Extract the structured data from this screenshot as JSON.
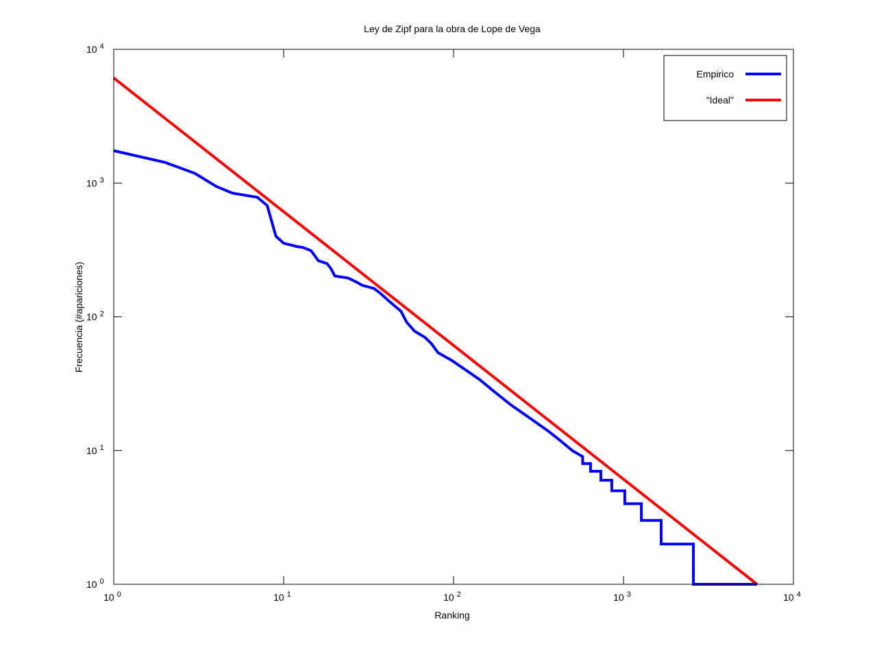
{
  "chart_data": {
    "type": "line",
    "title": "Ley de Zipf para la obra de Lope de Vega",
    "xlabel": "Ranking",
    "ylabel": "Frecuencia (#apariciones)",
    "xscale": "log",
    "yscale": "log",
    "xlim": [
      1,
      10000
    ],
    "ylim": [
      1,
      10000
    ],
    "grid": false,
    "legend_position": "top-right",
    "x_ticks": [
      {
        "base": "10",
        "exp": "0"
      },
      {
        "base": "10",
        "exp": "1"
      },
      {
        "base": "10",
        "exp": "2"
      },
      {
        "base": "10",
        "exp": "3"
      },
      {
        "base": "10",
        "exp": "4"
      }
    ],
    "y_ticks": [
      {
        "base": "10",
        "exp": "0"
      },
      {
        "base": "10",
        "exp": "1"
      },
      {
        "base": "10",
        "exp": "2"
      },
      {
        "base": "10",
        "exp": "3"
      },
      {
        "base": "10",
        "exp": "4"
      }
    ],
    "series": [
      {
        "name": "Empirico",
        "color": "#0000ff",
        "points": [
          [
            1,
            1746
          ],
          [
            2,
            1429
          ],
          [
            3,
            1183
          ],
          [
            4,
            946
          ],
          [
            5,
            840
          ],
          [
            7,
            783
          ],
          [
            8,
            679
          ],
          [
            9,
            400
          ],
          [
            10,
            355
          ],
          [
            12,
            335
          ],
          [
            13,
            330
          ],
          [
            14.5,
            312
          ],
          [
            16,
            263
          ],
          [
            18,
            250
          ],
          [
            19,
            229
          ],
          [
            20,
            202
          ],
          [
            24,
            195
          ],
          [
            27,
            181
          ],
          [
            29,
            172
          ],
          [
            34,
            163
          ],
          [
            37,
            150
          ],
          [
            42,
            130
          ],
          [
            49,
            110
          ],
          [
            53,
            91
          ],
          [
            59,
            78
          ],
          [
            68,
            70
          ],
          [
            74,
            63
          ],
          [
            81,
            54
          ],
          [
            98,
            47
          ],
          [
            118,
            40
          ],
          [
            142,
            34
          ],
          [
            171,
            28
          ],
          [
            217,
            22
          ],
          [
            272,
            18
          ],
          [
            360,
            14
          ],
          [
            420,
            12
          ],
          [
            500,
            10
          ],
          [
            575,
            9
          ],
          [
            575,
            8
          ],
          [
            640,
            8
          ],
          [
            640,
            7
          ],
          [
            736,
            7
          ],
          [
            736,
            6
          ],
          [
            853,
            6
          ],
          [
            853,
            5
          ],
          [
            1018,
            5
          ],
          [
            1018,
            4
          ],
          [
            1274,
            4
          ],
          [
            1274,
            3
          ],
          [
            1667,
            3
          ],
          [
            1667,
            2
          ],
          [
            2577,
            2
          ],
          [
            2577,
            1
          ],
          [
            6110,
            1
          ]
        ]
      },
      {
        "name": "\"Ideal\"",
        "color": "#ff0000",
        "points": [
          [
            1,
            6110
          ],
          [
            6110,
            1
          ]
        ]
      }
    ]
  }
}
